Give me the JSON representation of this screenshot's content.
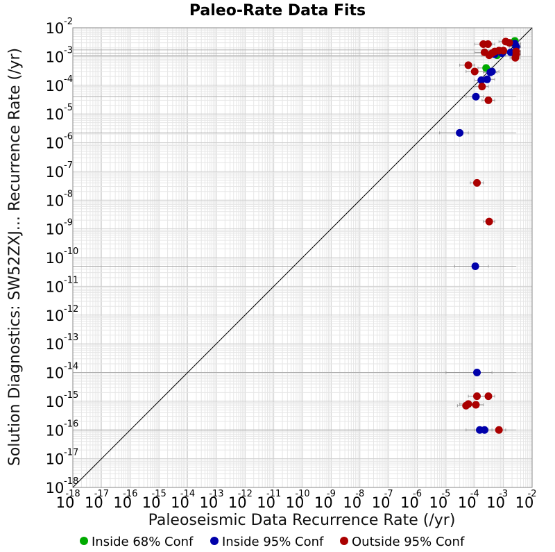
{
  "chart_data": {
    "type": "scatter",
    "title": "Paleo-Rate Data Fits",
    "xlabel": "Paleoseismic Data Recurrence Rate (/yr)",
    "ylabel": "Solution Diagnostics: SW52ZXJ... Recurrence Rate (/yr)",
    "x_scale": "log",
    "y_scale": "log",
    "xlim": [
      1e-18,
      0.01
    ],
    "ylim": [
      1e-18,
      0.01
    ],
    "tick_base": "10",
    "x_tick_exponents": [
      "-18",
      "-17",
      "-16",
      "-15",
      "-14",
      "-13",
      "-12",
      "-11",
      "-10",
      "-9",
      "-8",
      "-7",
      "-6",
      "-5",
      "-4",
      "-3",
      "-2"
    ],
    "y_tick_exponents": [
      "-18",
      "-17",
      "-16",
      "-15",
      "-14",
      "-13",
      "-12",
      "-11",
      "-10",
      "-9",
      "-8",
      "-7",
      "-6",
      "-5",
      "-4",
      "-3",
      "-2"
    ],
    "grid": true,
    "reference_line": "y = x",
    "legend_position": "bottom",
    "colors": {
      "inside68": "#00aa00",
      "inside95": "#0000aa",
      "outside95": "#aa0000",
      "error_bars": "#999999",
      "grid": "#e6e6e6"
    },
    "series": [
      {
        "name": "Inside 68% Conf",
        "color": "#00aa00",
        "points": [
          {
            "x": 0.0025,
            "y": 0.0035,
            "xlo": 0.0015,
            "xhi": 0.0035
          },
          {
            "x": 0.0022,
            "y": 0.003,
            "xlo": 0.0014,
            "xhi": 0.003
          },
          {
            "x": 0.0006,
            "y": 0.0011,
            "xlo": 0.0003,
            "xhi": 0.0012
          },
          {
            "x": 0.00025,
            "y": 0.0004,
            "xlo": 0.00013,
            "xhi": 0.0004
          }
        ]
      },
      {
        "name": "Inside 95% Conf",
        "color": "#0000aa",
        "points": [
          {
            "x": 0.0025,
            "y": 0.0028,
            "xlo": 0.0014,
            "xhi": 0.004
          },
          {
            "x": 0.0028,
            "y": 0.0022,
            "xlo": 0.0016,
            "xhi": 0.004
          },
          {
            "x": 0.0018,
            "y": 0.0014,
            "xlo": 0.001,
            "xhi": 0.003
          },
          {
            "x": 0.0009,
            "y": 0.0013,
            "xlo": 0.0005,
            "xhi": 0.0016
          },
          {
            "x": 0.0005,
            "y": 0.0012,
            "xlo": 0.0003,
            "xhi": 0.0009
          },
          {
            "x": 0.0004,
            "y": 0.0003,
            "xlo": 0.0002,
            "xhi": 0.0007
          },
          {
            "x": 0.00035,
            "y": 0.00028,
            "xlo": 0.0002,
            "xhi": 0.0006
          },
          {
            "x": 0.00027,
            "y": 0.00016,
            "xlo": 0.00015,
            "xhi": 0.0005
          },
          {
            "x": 0.00017,
            "y": 0.00015,
            "xlo": 0.0001,
            "xhi": 0.0003
          },
          {
            "x": 0.00011,
            "y": 4e-05,
            "xlo": 5e-05,
            "xhi": 0.0002
          },
          {
            "x": 3e-05,
            "y": 2.2e-06,
            "xlo": 6e-06,
            "xhi": 6e-05
          },
          {
            "x": 0.000105,
            "y": 5e-11,
            "xlo": 2e-05,
            "xhi": 0.0003
          },
          {
            "x": 0.00012,
            "y": 1e-14,
            "xlo": 1e-05,
            "xhi": 0.0004
          },
          {
            "x": 0.00015,
            "y": 1e-16,
            "xlo": 5e-05,
            "xhi": 0.0003
          },
          {
            "x": 0.00022,
            "y": 1e-16,
            "xlo": 0.0001,
            "xhi": 0.0004
          }
        ]
      },
      {
        "name": "Outside 95% Conf",
        "color": "#aa0000",
        "points": [
          {
            "x": 0.0012,
            "y": 0.0033,
            "xlo": 0.0007,
            "xhi": 0.002
          },
          {
            "x": 0.0016,
            "y": 0.003,
            "xlo": 0.001,
            "xhi": 0.0025
          },
          {
            "x": 0.0002,
            "y": 0.0027,
            "xlo": 0.0001,
            "xhi": 0.0004
          },
          {
            "x": 0.00029,
            "y": 0.0027,
            "xlo": 0.00015,
            "xhi": 0.0005
          },
          {
            "x": 0.0007,
            "y": 0.0016,
            "xlo": 0.0004,
            "xhi": 0.0012
          },
          {
            "x": 0.001,
            "y": 0.0016,
            "xlo": 0.0006,
            "xhi": 0.0015
          },
          {
            "x": 0.0005,
            "y": 0.0015,
            "xlo": 0.0003,
            "xhi": 0.0009
          },
          {
            "x": 0.00022,
            "y": 0.0014,
            "xlo": 0.0001,
            "xhi": 0.0005
          },
          {
            "x": 0.0004,
            "y": 0.0013,
            "xlo": 0.0002,
            "xhi": 0.0007
          },
          {
            "x": 0.00032,
            "y": 0.0011,
            "xlo": 0.00018,
            "xhi": 0.0006
          },
          {
            "x": 0.0028,
            "y": 0.0015,
            "xlo": 0.0018,
            "xhi": 0.004
          },
          {
            "x": 0.0026,
            "y": 0.0009,
            "xlo": 0.0017,
            "xhi": 0.0038
          },
          {
            "x": 0.0028,
            "y": 0.0012,
            "xlo": 0.0018,
            "xhi": 0.004
          },
          {
            "x": 6e-05,
            "y": 0.0005,
            "xlo": 3e-05,
            "xhi": 0.0001
          },
          {
            "x": 0.0001,
            "y": 0.0003,
            "xlo": 5e-05,
            "xhi": 0.0002
          },
          {
            "x": 0.00018,
            "y": 9e-05,
            "xlo": 0.0001,
            "xhi": 0.0003
          },
          {
            "x": 0.0003,
            "y": 3e-05,
            "xlo": 0.00018,
            "xhi": 0.0005
          },
          {
            "x": 0.00012,
            "y": 4e-08,
            "xlo": 7e-05,
            "xhi": 0.0002
          },
          {
            "x": 0.00032,
            "y": 1.8e-09,
            "xlo": 0.0002,
            "xhi": 0.0005
          },
          {
            "x": 0.00012,
            "y": 1.5e-15,
            "xlo": 6e-05,
            "xhi": 0.0003
          },
          {
            "x": 0.0003,
            "y": 1.5e-15,
            "xlo": 0.00015,
            "xhi": 0.0005
          },
          {
            "x": 5e-05,
            "y": 7e-16,
            "xlo": 2.5e-05,
            "xhi": 0.0001
          },
          {
            "x": 6e-05,
            "y": 8e-16,
            "xlo": 3e-05,
            "xhi": 0.0001
          },
          {
            "x": 0.00011,
            "y": 7.5e-16,
            "xlo": 6e-05,
            "xhi": 0.0002
          },
          {
            "x": 0.0007,
            "y": 1e-16,
            "xlo": 0.0004,
            "xhi": 0.0012
          }
        ]
      }
    ]
  }
}
